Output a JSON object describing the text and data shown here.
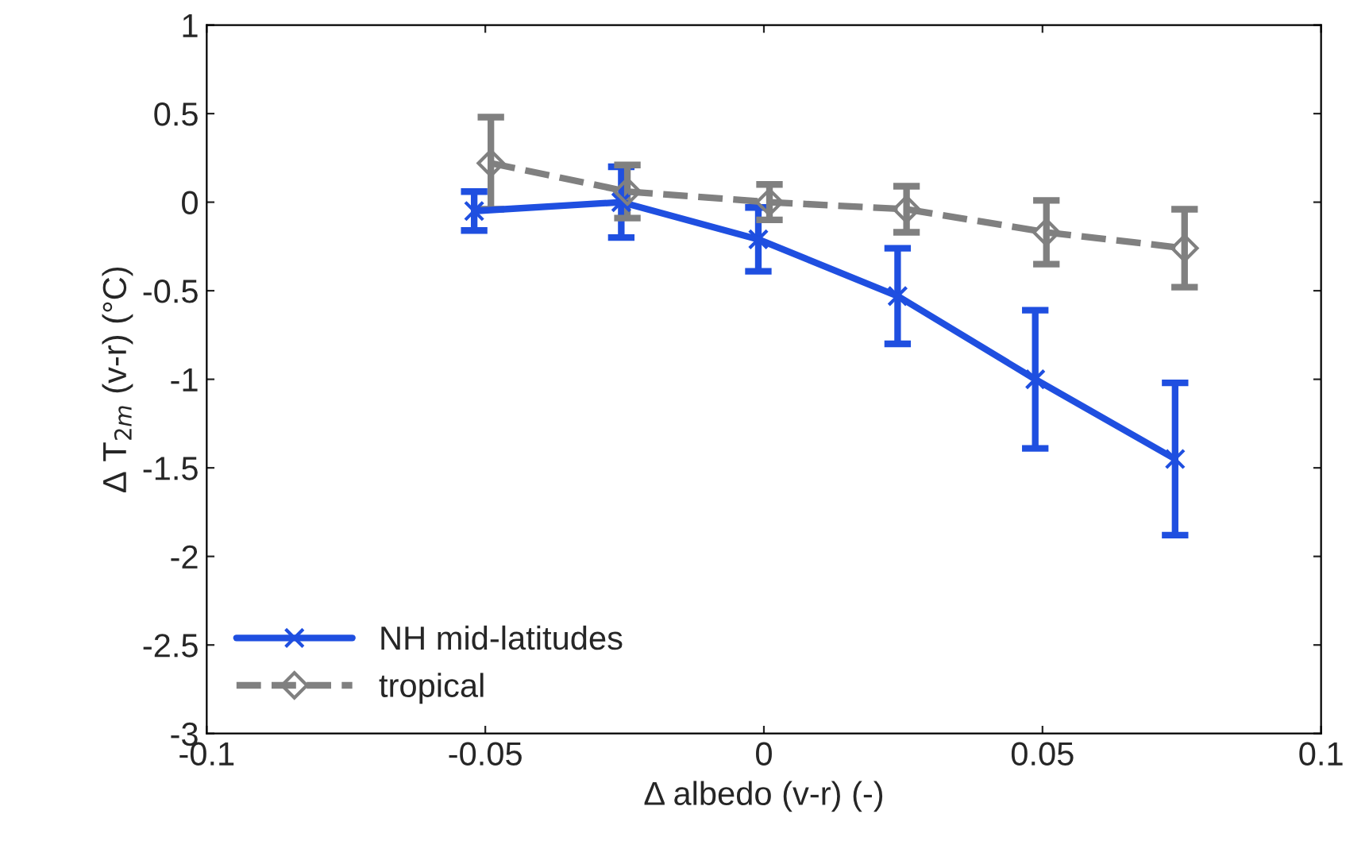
{
  "chart_data": {
    "type": "line",
    "xlabel": "Δ albedo (v-r) (-)",
    "ylabel": "Δ T$_{2m}$ (v-r) (°C)",
    "xlim": [
      -0.1,
      0.1
    ],
    "xticks": [
      -0.1,
      -0.05,
      0,
      0.05,
      0.1
    ],
    "ylim": [
      -3,
      1
    ],
    "yticks": [
      -3,
      -2.5,
      -2,
      -1.5,
      -1,
      -0.5,
      0,
      0.5,
      1
    ],
    "grid": false,
    "legend": "bottom left",
    "series": [
      {
        "name": "NH mid-latitudes",
        "color": "#1f4fe0",
        "marker": "cross",
        "line_style": "solid",
        "x": [
          -0.052,
          -0.0256,
          -0.001,
          0.024,
          0.0487,
          0.0738
        ],
        "values": [
          -0.05,
          0,
          -0.21,
          -0.53,
          -1.0,
          -1.45
        ],
        "errors": [
          0.11,
          0.2,
          0.18,
          0.27,
          0.39,
          0.43
        ]
      },
      {
        "name": "tropical",
        "color": "#808080",
        "marker": "diamond",
        "line_style": "dashed",
        "x": [
          -0.049,
          -0.0245,
          0.001,
          0.0256,
          0.0507,
          0.0755
        ],
        "values": [
          0.22,
          0.06,
          0.0,
          -0.04,
          -0.17,
          -0.26
        ],
        "errors": [
          0.26,
          0.15,
          0.1,
          0.13,
          0.18,
          0.22
        ]
      }
    ]
  }
}
